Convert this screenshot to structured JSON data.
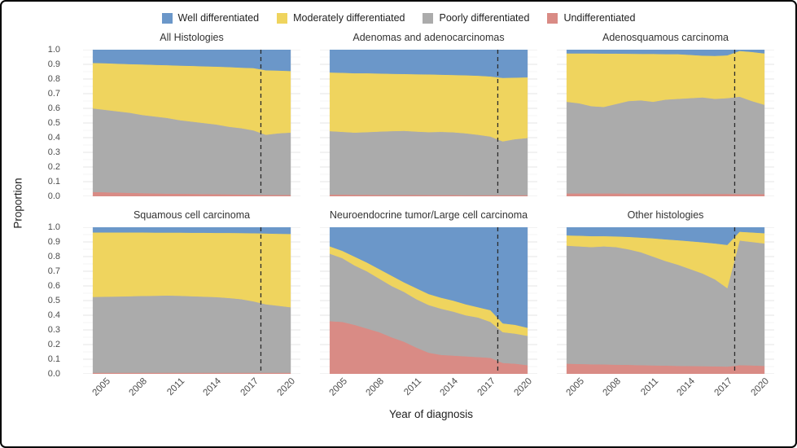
{
  "figure": {
    "legend": {
      "items": [
        {
          "label": "Well differentiated",
          "color": "#6b97c9"
        },
        {
          "label": "Moderately differentiated",
          "color": "#efd45e"
        },
        {
          "label": "Poorly differentiated",
          "color": "#ababab"
        },
        {
          "label": "Undifferentiated",
          "color": "#d98b85"
        }
      ]
    },
    "y_axis": {
      "title": "Proportion",
      "tick_labels": [
        "1.0",
        "0.9",
        "0.8",
        "0.7",
        "0.6",
        "0.5",
        "0.4",
        "0.3",
        "0.2",
        "0.1",
        "0.0"
      ]
    },
    "x_axis": {
      "title": "Year of diagnosis",
      "tick_years": [
        2005,
        2008,
        2011,
        2014,
        2017,
        2020
      ]
    },
    "grid_color_major": "#e4e4e4",
    "grid_color_minor": "#f1f1f1",
    "reference_line_color": "#2b2b2b"
  },
  "chart_data": {
    "type": "area",
    "stacked": true,
    "normalized": true,
    "xlabel": "Year of diagnosis",
    "ylabel": "Proportion",
    "ylim": [
      0,
      1
    ],
    "x_domain": [
      2003.2,
      2020.8
    ],
    "vline_x": 2017.6,
    "x": [
      2004,
      2005,
      2006,
      2007,
      2008,
      2009,
      2010,
      2011,
      2012,
      2013,
      2014,
      2015,
      2016,
      2017,
      2018,
      2019,
      2020
    ],
    "categories": [
      {
        "name": "Undifferentiated",
        "color": "#d98b85"
      },
      {
        "name": "Poorly differentiated",
        "color": "#ababab"
      },
      {
        "name": "Moderately differentiated",
        "color": "#efd45e"
      },
      {
        "name": "Well differentiated",
        "color": "#6b97c9"
      }
    ],
    "panels": [
      {
        "title": "All Histologies",
        "series": {
          "Undifferentiated": [
            0.03,
            0.028,
            0.026,
            0.024,
            0.022,
            0.02,
            0.019,
            0.018,
            0.017,
            0.016,
            0.015,
            0.014,
            0.013,
            0.012,
            0.01,
            0.01,
            0.01
          ],
          "Poorly differentiated": [
            0.57,
            0.562,
            0.554,
            0.546,
            0.533,
            0.525,
            0.516,
            0.502,
            0.493,
            0.484,
            0.475,
            0.461,
            0.452,
            0.438,
            0.41,
            0.42,
            0.425
          ],
          "Moderately differentiated": [
            0.31,
            0.318,
            0.325,
            0.332,
            0.345,
            0.352,
            0.36,
            0.372,
            0.38,
            0.387,
            0.395,
            0.407,
            0.413,
            0.425,
            0.44,
            0.428,
            0.42
          ],
          "Well differentiated": [
            0.09,
            0.092,
            0.095,
            0.098,
            0.1,
            0.103,
            0.105,
            0.108,
            0.11,
            0.113,
            0.115,
            0.118,
            0.122,
            0.125,
            0.14,
            0.142,
            0.145
          ]
        }
      },
      {
        "title": "Adenomas and adenocarcinomas",
        "series": {
          "Undifferentiated": [
            0.012,
            0.012,
            0.011,
            0.011,
            0.01,
            0.01,
            0.01,
            0.01,
            0.009,
            0.009,
            0.009,
            0.008,
            0.008,
            0.008,
            0.008,
            0.008,
            0.008
          ],
          "Poorly differentiated": [
            0.433,
            0.428,
            0.424,
            0.427,
            0.432,
            0.435,
            0.437,
            0.432,
            0.429,
            0.431,
            0.428,
            0.422,
            0.412,
            0.4,
            0.367,
            0.382,
            0.39
          ],
          "Moderately differentiated": [
            0.4,
            0.403,
            0.405,
            0.402,
            0.396,
            0.391,
            0.388,
            0.391,
            0.394,
            0.39,
            0.391,
            0.396,
            0.403,
            0.41,
            0.433,
            0.42,
            0.414
          ],
          "Well differentiated": [
            0.155,
            0.157,
            0.16,
            0.16,
            0.162,
            0.164,
            0.165,
            0.167,
            0.168,
            0.17,
            0.172,
            0.174,
            0.177,
            0.182,
            0.192,
            0.19,
            0.188
          ]
        }
      },
      {
        "title": "Adenosquamous carcinoma",
        "series": {
          "Undifferentiated": [
            0.02,
            0.02,
            0.02,
            0.02,
            0.02,
            0.019,
            0.019,
            0.019,
            0.018,
            0.018,
            0.018,
            0.017,
            0.017,
            0.017,
            0.016,
            0.016,
            0.016
          ],
          "Poorly differentiated": [
            0.625,
            0.615,
            0.595,
            0.59,
            0.61,
            0.631,
            0.636,
            0.626,
            0.642,
            0.647,
            0.652,
            0.658,
            0.648,
            0.653,
            0.664,
            0.634,
            0.609
          ],
          "Moderately differentiated": [
            0.33,
            0.34,
            0.36,
            0.364,
            0.344,
            0.323,
            0.317,
            0.327,
            0.31,
            0.305,
            0.295,
            0.285,
            0.293,
            0.292,
            0.312,
            0.335,
            0.35
          ],
          "Well differentiated": [
            0.025,
            0.025,
            0.025,
            0.026,
            0.026,
            0.027,
            0.028,
            0.028,
            0.03,
            0.03,
            0.035,
            0.04,
            0.042,
            0.038,
            0.008,
            0.015,
            0.025
          ]
        }
      },
      {
        "title": "Squamous cell carcinoma",
        "series": {
          "Undifferentiated": [
            0.008,
            0.008,
            0.008,
            0.008,
            0.008,
            0.008,
            0.008,
            0.008,
            0.008,
            0.008,
            0.008,
            0.008,
            0.008,
            0.008,
            0.008,
            0.008,
            0.008
          ],
          "Poorly differentiated": [
            0.517,
            0.519,
            0.52,
            0.522,
            0.524,
            0.525,
            0.527,
            0.525,
            0.522,
            0.519,
            0.516,
            0.51,
            0.502,
            0.487,
            0.467,
            0.457,
            0.447
          ],
          "Moderately differentiated": [
            0.44,
            0.438,
            0.437,
            0.435,
            0.433,
            0.431,
            0.429,
            0.431,
            0.433,
            0.436,
            0.438,
            0.444,
            0.451,
            0.465,
            0.483,
            0.491,
            0.5
          ],
          "Well differentiated": [
            0.035,
            0.035,
            0.035,
            0.035,
            0.035,
            0.036,
            0.036,
            0.036,
            0.037,
            0.037,
            0.038,
            0.038,
            0.039,
            0.04,
            0.042,
            0.044,
            0.045
          ]
        }
      },
      {
        "title": "Neuroendocrine tumor/Large cell carcinoma",
        "series": {
          "Undifferentiated": [
            0.36,
            0.355,
            0.335,
            0.31,
            0.285,
            0.25,
            0.22,
            0.18,
            0.145,
            0.13,
            0.125,
            0.12,
            0.115,
            0.11,
            0.075,
            0.07,
            0.06
          ],
          "Poorly differentiated": [
            0.46,
            0.435,
            0.405,
            0.39,
            0.365,
            0.35,
            0.34,
            0.33,
            0.325,
            0.315,
            0.3,
            0.28,
            0.27,
            0.245,
            0.21,
            0.205,
            0.2
          ],
          "Moderately differentiated": [
            0.05,
            0.05,
            0.06,
            0.06,
            0.065,
            0.07,
            0.065,
            0.075,
            0.075,
            0.075,
            0.075,
            0.075,
            0.07,
            0.08,
            0.06,
            0.06,
            0.055
          ],
          "Well differentiated": [
            0.13,
            0.16,
            0.2,
            0.24,
            0.285,
            0.33,
            0.375,
            0.415,
            0.455,
            0.48,
            0.5,
            0.525,
            0.545,
            0.565,
            0.655,
            0.665,
            0.685
          ]
        }
      },
      {
        "title": "Other histologies",
        "series": {
          "Undifferentiated": [
            0.07,
            0.068,
            0.066,
            0.065,
            0.063,
            0.062,
            0.06,
            0.058,
            0.057,
            0.055,
            0.054,
            0.053,
            0.052,
            0.05,
            0.06,
            0.058,
            0.055
          ],
          "Poorly differentiated": [
            0.805,
            0.802,
            0.799,
            0.805,
            0.802,
            0.788,
            0.77,
            0.742,
            0.713,
            0.69,
            0.661,
            0.632,
            0.593,
            0.535,
            0.85,
            0.842,
            0.835
          ],
          "Moderately differentiated": [
            0.07,
            0.073,
            0.075,
            0.07,
            0.073,
            0.085,
            0.1,
            0.125,
            0.148,
            0.167,
            0.19,
            0.213,
            0.245,
            0.295,
            0.06,
            0.065,
            0.07
          ],
          "Well differentiated": [
            0.055,
            0.057,
            0.06,
            0.06,
            0.062,
            0.065,
            0.07,
            0.075,
            0.082,
            0.088,
            0.095,
            0.102,
            0.11,
            0.12,
            0.03,
            0.035,
            0.04
          ]
        }
      }
    ]
  }
}
